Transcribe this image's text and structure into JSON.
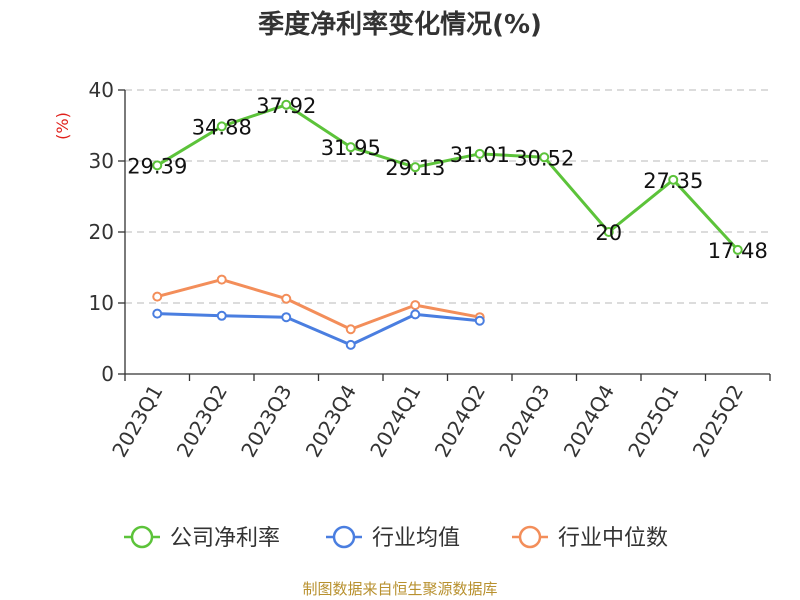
{
  "chart_data": {
    "type": "line",
    "title": "季度净利率变化情况(%)",
    "ylabel": "(%)",
    "categories": [
      "2023Q1",
      "2023Q2",
      "2023Q3",
      "2023Q4",
      "2024Q1",
      "2024Q2",
      "2024Q3",
      "2024Q4",
      "2025Q1",
      "2025Q2"
    ],
    "ylim": [
      0,
      40
    ],
    "yticks": [
      0,
      10,
      20,
      30,
      40
    ],
    "grid": true,
    "legend_position": "bottom",
    "series": [
      {
        "name": "公司净利率",
        "color": "#5cc33a",
        "values": [
          29.39,
          34.88,
          37.92,
          31.95,
          29.13,
          31.01,
          30.52,
          20,
          27.35,
          17.48
        ],
        "labels": [
          "29.39",
          "34.88",
          "37.92",
          "31.95",
          "29.13",
          "31.01",
          "30.52",
          "20",
          "27.35",
          "17.48"
        ]
      },
      {
        "name": "行业均值",
        "color": "#4a7ee0",
        "values": [
          8.5,
          8.2,
          8.0,
          4.1,
          8.4,
          7.5,
          null,
          null,
          null,
          null
        ]
      },
      {
        "name": "行业中位数",
        "color": "#f38e5a",
        "values": [
          10.9,
          13.3,
          10.6,
          6.3,
          9.7,
          8.0,
          null,
          null,
          null,
          null
        ]
      }
    ],
    "source": "制图数据来自恒生聚源数据库"
  }
}
